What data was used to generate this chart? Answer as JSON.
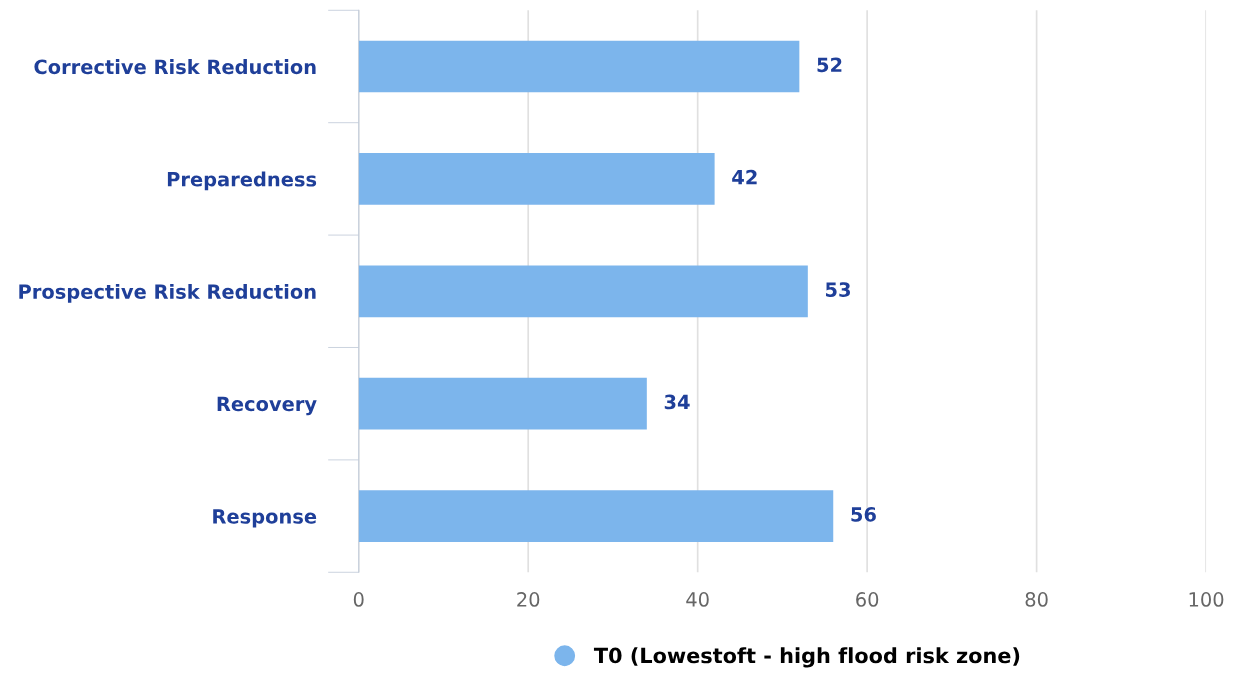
{
  "chart_data": {
    "type": "bar",
    "orientation": "horizontal",
    "categories": [
      "Corrective Risk Reduction",
      "Preparedness",
      "Prospective Risk Reduction",
      "Recovery",
      "Response"
    ],
    "series": [
      {
        "name": "T0 (Lowestoft - high flood risk zone)",
        "color": "#7cb5ec",
        "values": [
          52,
          42,
          53,
          34,
          56
        ]
      }
    ],
    "xlim": [
      0,
      100
    ],
    "xticks": [
      0,
      20,
      40,
      60,
      80,
      100
    ],
    "grid": "x",
    "legend": "bottom",
    "data_labels": true
  }
}
